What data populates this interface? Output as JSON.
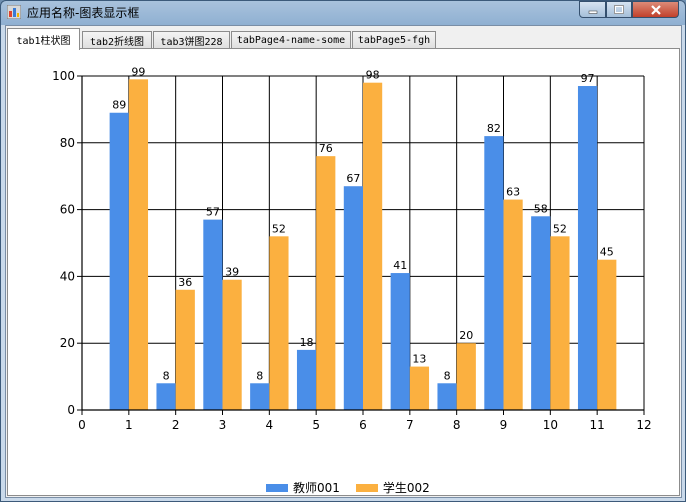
{
  "window": {
    "title": "应用名称-图表显示框"
  },
  "tabs": [
    {
      "label": "tab1柱状图"
    },
    {
      "label": "tab2折线图"
    },
    {
      "label": "tab3饼图228"
    },
    {
      "label": "tabPage4-name-some"
    },
    {
      "label": "tabPage5-fgh"
    }
  ],
  "colors": {
    "series1": "#4a8ee8",
    "series2": "#fbb040"
  },
  "chart_data": {
    "type": "bar",
    "x": [
      1,
      2,
      3,
      4,
      5,
      6,
      7,
      8,
      9,
      10,
      11
    ],
    "series": [
      {
        "name": "教师001",
        "values": [
          89,
          8,
          57,
          8,
          18,
          67,
          41,
          8,
          82,
          58,
          97
        ]
      },
      {
        "name": "学生002",
        "values": [
          99,
          36,
          39,
          52,
          76,
          98,
          13,
          20,
          63,
          52,
          45
        ]
      }
    ],
    "xlim": [
      0,
      12
    ],
    "ylim": [
      0,
      100
    ],
    "xticks": [
      0,
      1,
      2,
      3,
      4,
      5,
      6,
      7,
      8,
      9,
      10,
      11,
      12
    ],
    "yticks": [
      0,
      20,
      40,
      60,
      80,
      100
    ],
    "grid": true,
    "legend_position": "bottom-center",
    "data_labels": true
  }
}
